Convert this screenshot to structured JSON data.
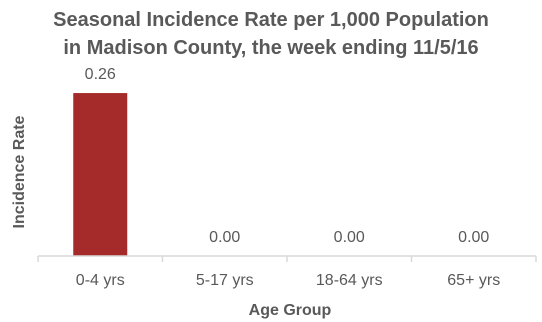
{
  "chart_data": {
    "type": "bar",
    "title_line1": "Seasonal Incidence Rate per 1,000 Population",
    "title_line2": "in Madison County, the week ending 11/5/16",
    "xlabel": "Age Group",
    "ylabel": "Incidence Rate",
    "categories": [
      "0-4 yrs",
      "5-17 yrs",
      "18-64 yrs",
      "65+ yrs"
    ],
    "values": [
      0.26,
      0.0,
      0.0,
      0.0
    ],
    "data_labels": [
      "0.26",
      "0.00",
      "0.00",
      "0.00"
    ],
    "ylim": [
      0,
      0.3
    ],
    "bar_color": "#a52a2a",
    "grid": false,
    "legend": "none"
  }
}
